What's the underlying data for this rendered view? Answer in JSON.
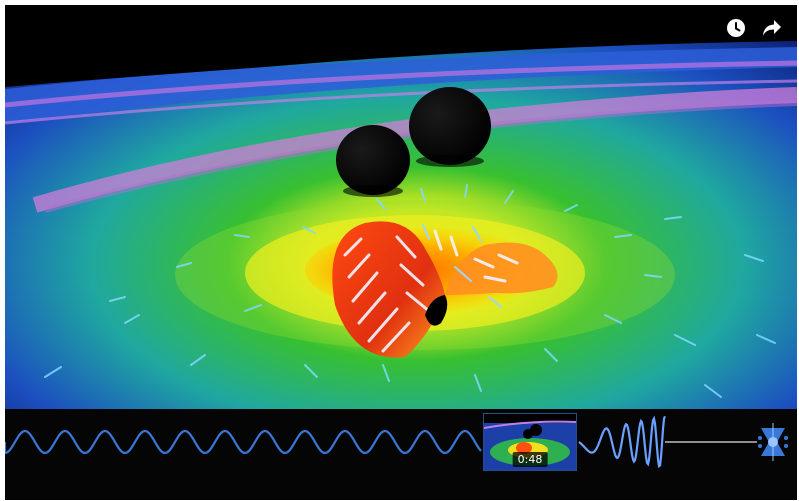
{
  "controls": {
    "watch_later_icon": "clock-icon",
    "share_icon": "share-arrow-icon"
  },
  "scrubber": {
    "preview_time": "0:48"
  },
  "colors": {
    "waveform": "#3a78d8",
    "icon": "#ffffff"
  }
}
